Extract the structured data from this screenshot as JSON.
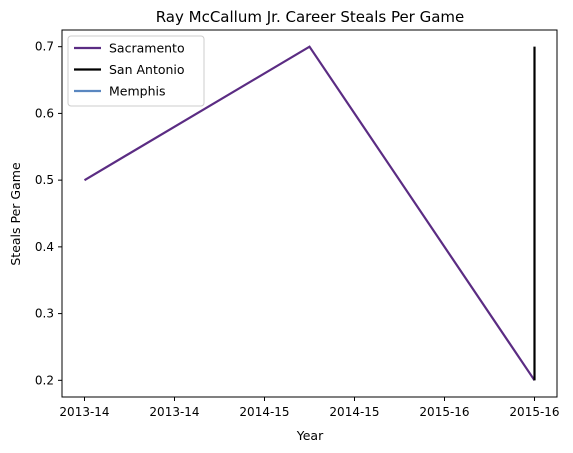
{
  "chart_data": {
    "type": "line",
    "title": "Ray McCallum Jr. Career Steals Per Game",
    "xlabel": "Year",
    "ylabel": "Steals Per Game",
    "x_ticks": [
      "2013-14",
      "2013-14",
      "2014-15",
      "2014-15",
      "2015-16",
      "2015-16"
    ],
    "x_tick_positions": [
      0,
      0.4,
      0.8,
      1.2,
      1.6,
      2.0
    ],
    "xlim": [
      -0.1,
      2.1
    ],
    "ylim": [
      0.175,
      0.725
    ],
    "y_ticks": [
      0.2,
      0.3,
      0.4,
      0.5,
      0.6,
      0.7
    ],
    "y_tick_labels": [
      "0.2",
      "0.3",
      "0.4",
      "0.5",
      "0.6",
      "0.7"
    ],
    "grid": false,
    "legend_position": "top-left",
    "series": [
      {
        "name": "Sacramento",
        "color": "#5b2c83",
        "x": [
          0,
          1,
          2
        ],
        "x_labels": [
          "2013-14",
          "2014-15",
          "2015-16"
        ],
        "y": [
          0.5,
          0.7,
          0.2
        ]
      },
      {
        "name": "San Antonio",
        "color": "#000000",
        "x": [
          2,
          2
        ],
        "x_labels": [
          "2015-16",
          "2015-16"
        ],
        "y": [
          0.2,
          0.7
        ]
      },
      {
        "name": "Memphis",
        "color": "#5a87c0",
        "x": [
          2
        ],
        "x_labels": [
          "2015-16"
        ],
        "y": [
          0.2
        ]
      }
    ]
  }
}
